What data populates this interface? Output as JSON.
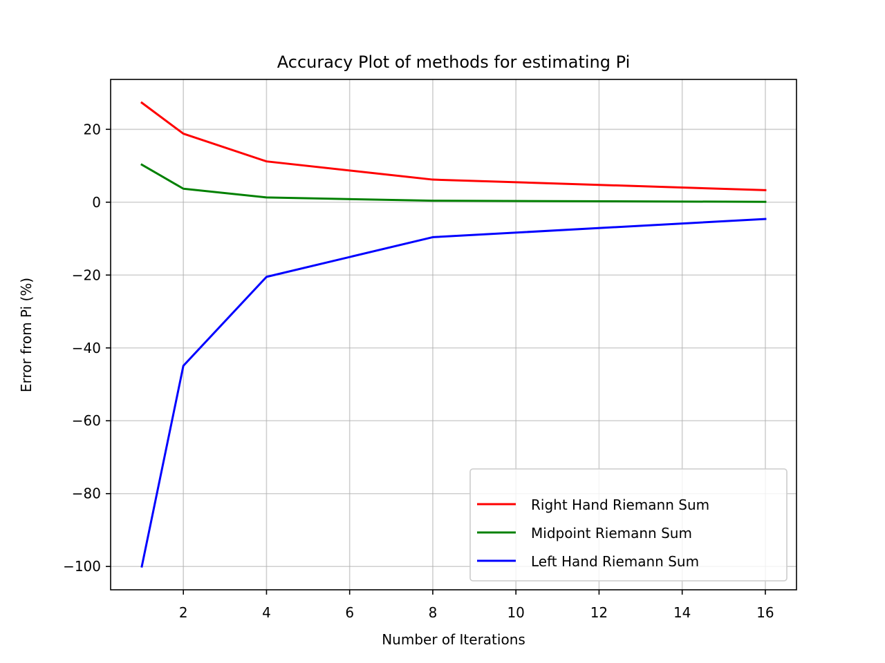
{
  "chart_data": {
    "type": "line",
    "title": "Accuracy Plot of methods for estimating Pi",
    "xlabel": "Number of Iterations",
    "ylabel": "Error from Pi (%)",
    "xlim": [
      0.25,
      16.75
    ],
    "ylim": [
      -106.4,
      33.7
    ],
    "xticks": [
      2,
      4,
      6,
      8,
      10,
      12,
      14,
      16
    ],
    "xtick_labels": [
      "2",
      "4",
      "6",
      "8",
      "10",
      "12",
      "14",
      "16"
    ],
    "yticks": [
      20,
      0,
      -20,
      -40,
      -60,
      -80,
      -100
    ],
    "ytick_labels": [
      "20",
      "0",
      "−20",
      "−40",
      "−60",
      "−80",
      "−100"
    ],
    "grid": true,
    "legend_position": "bottom-right",
    "x": [
      1,
      2,
      4,
      8,
      16
    ],
    "series": [
      {
        "name": "Right Hand Riemann Sum",
        "color": "#ff0000",
        "values": [
          27.3,
          18.8,
          11.2,
          6.2,
          3.3
        ]
      },
      {
        "name": "Midpoint Riemann Sum",
        "color": "#008000",
        "values": [
          10.3,
          3.7,
          1.3,
          0.4,
          0.1
        ]
      },
      {
        "name": "Left Hand Riemann Sum",
        "color": "#0000ff",
        "values": [
          -100,
          -44.9,
          -20.5,
          -9.6,
          -4.6
        ]
      }
    ]
  }
}
